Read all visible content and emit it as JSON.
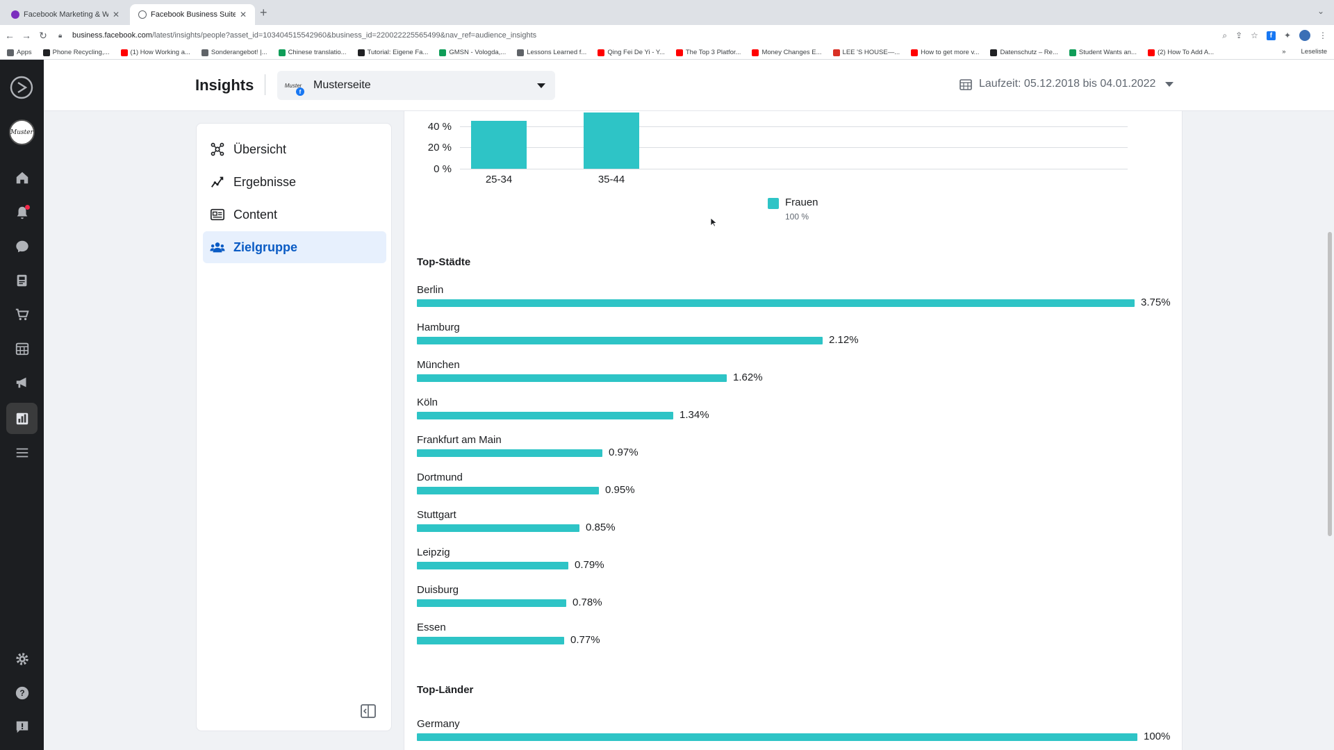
{
  "browser": {
    "tabs": [
      {
        "title": "Facebook Marketing & Werbea",
        "active": false,
        "favicon_color": "#7b2fbe"
      },
      {
        "title": "Facebook Business Suite",
        "active": true,
        "favicon_color": "#5f6368"
      }
    ],
    "url_host": "business.facebook.com",
    "url_path": "/latest/insights/people?asset_id=103404515542960&business_id=220022225565499&nav_ref=audience_insights",
    "bookmarks": [
      {
        "label": "Apps",
        "icon_color": "#5f6368"
      },
      {
        "label": "Phone Recycling,...",
        "icon_color": "#202124"
      },
      {
        "label": "(1) How Working a...",
        "icon_color": "#ff0000"
      },
      {
        "label": "Sonderangebot! |...",
        "icon_color": "#5f6368"
      },
      {
        "label": "Chinese translatio...",
        "icon_color": "#0f9d58"
      },
      {
        "label": "Tutorial: Eigene Fa...",
        "icon_color": "#202124"
      },
      {
        "label": "GMSN - Vologda,...",
        "icon_color": "#0f9d58"
      },
      {
        "label": "Lessons Learned f...",
        "icon_color": "#5f6368"
      },
      {
        "label": "Qing Fei De Yi - Y...",
        "icon_color": "#ff0000"
      },
      {
        "label": "The Top 3 Platfor...",
        "icon_color": "#ff0000"
      },
      {
        "label": "Money Changes E...",
        "icon_color": "#ff0000"
      },
      {
        "label": "LEE 'S HOUSE—...",
        "icon_color": "#d93025"
      },
      {
        "label": "How to get more v...",
        "icon_color": "#ff0000"
      },
      {
        "label": "Datenschutz – Re...",
        "icon_color": "#202124"
      },
      {
        "label": "Student Wants an...",
        "icon_color": "#0f9d58"
      },
      {
        "label": "(2) How To Add A...",
        "icon_color": "#ff0000"
      }
    ],
    "bookmarks_more": "»",
    "reading_list": "Leseliste"
  },
  "header": {
    "title": "Insights",
    "page_name": "Musterseite",
    "page_avatar_text": "Muster",
    "date_range": "Laufzeit: 05.12.2018 bis 04.01.2022"
  },
  "rail": {
    "avatar_text": "Muster",
    "icons": [
      "meta-logo-icon",
      "home-icon",
      "notifications-icon",
      "inbox-icon",
      "content-icon",
      "commerce-icon",
      "planner-icon",
      "ads-icon",
      "insights-icon",
      "menu-icon",
      "settings-icon",
      "help-icon",
      "feedback-icon"
    ]
  },
  "nav": {
    "items": [
      {
        "label": "Übersicht",
        "icon": "overview-icon",
        "active": false
      },
      {
        "label": "Ergebnisse",
        "icon": "results-icon",
        "active": false
      },
      {
        "label": "Content",
        "icon": "content-icon",
        "active": false
      },
      {
        "label": "Zielgruppe",
        "icon": "audience-icon",
        "active": true
      }
    ]
  },
  "colors": {
    "bar": "#2ec4c6",
    "active_nav": "#0a5bc4",
    "active_nav_bg": "#e7f0fd"
  },
  "chart_data": [
    {
      "type": "bar",
      "categories": [
        "25-34",
        "35-44"
      ],
      "series": [
        {
          "name": "Frauen",
          "values": [
            45,
            53
          ]
        }
      ],
      "yticks": [
        "40 %",
        "20 %",
        "0 %"
      ],
      "legend": [
        {
          "name": "Frauen",
          "value": "100 %"
        }
      ],
      "legend_position": "bottom-center"
    },
    {
      "type": "bar",
      "orientation": "horizontal",
      "title": "Top-Städte",
      "categories": [
        "Berlin",
        "Hamburg",
        "München",
        "Köln",
        "Frankfurt am Main",
        "Dortmund",
        "Stuttgart",
        "Leipzig",
        "Duisburg",
        "Essen"
      ],
      "values": [
        3.75,
        2.12,
        1.62,
        1.34,
        0.97,
        0.95,
        0.85,
        0.79,
        0.78,
        0.77
      ],
      "labels": [
        "3.75%",
        "2.12%",
        "1.62%",
        "1.34%",
        "0.97%",
        "0.95%",
        "0.85%",
        "0.79%",
        "0.78%",
        "0.77%"
      ]
    },
    {
      "type": "bar",
      "orientation": "horizontal",
      "title": "Top-Länder",
      "categories": [
        "Germany"
      ],
      "values": [
        100
      ],
      "labels": [
        "100%"
      ]
    }
  ]
}
